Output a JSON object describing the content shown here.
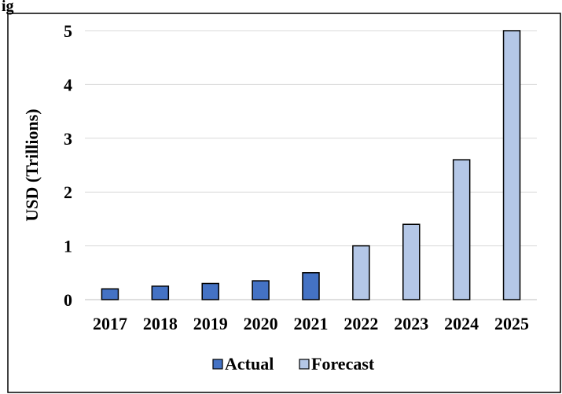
{
  "chart_data": {
    "type": "bar",
    "title_fragment": "ig",
    "ylabel": "USD (Trillions)",
    "xlabel": "",
    "ylim": [
      0,
      5
    ],
    "yticks": [
      0,
      1,
      2,
      3,
      4,
      5
    ],
    "grid": true,
    "legend_position": "bottom",
    "categories": [
      "2017",
      "2018",
      "2019",
      "2020",
      "2021",
      "2022",
      "2023",
      "2024",
      "2025"
    ],
    "values": [
      0.2,
      0.25,
      0.3,
      0.35,
      0.5,
      1.0,
      1.4,
      2.6,
      5.0
    ],
    "kinds": [
      "Actual",
      "Actual",
      "Actual",
      "Actual",
      "Actual",
      "Forecast",
      "Forecast",
      "Forecast",
      "Forecast"
    ],
    "series": [
      {
        "name": "Actual",
        "color": "#4472C4"
      },
      {
        "name": "Forecast",
        "color": "#B4C7E7"
      }
    ]
  }
}
